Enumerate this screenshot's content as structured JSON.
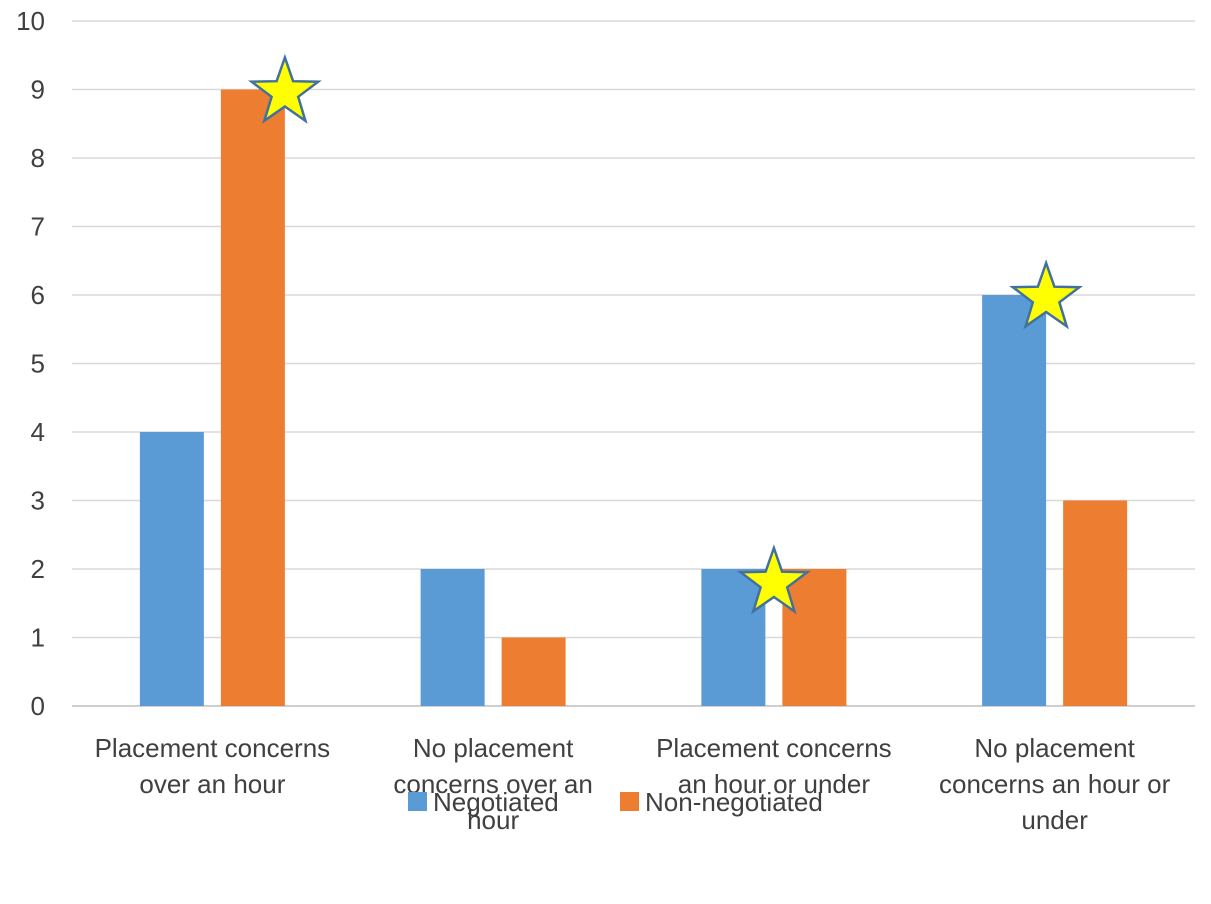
{
  "chart_data": {
    "type": "bar",
    "categories": [
      [
        "Placement concerns",
        "over an hour"
      ],
      [
        "No placement",
        "concerns over an",
        "hour"
      ],
      [
        "Placement concerns",
        "an hour or under"
      ],
      [
        "No placement",
        "concerns an hour or",
        "under"
      ]
    ],
    "series": [
      {
        "name": "Negotiated",
        "values": [
          4,
          2,
          2,
          6
        ],
        "color": "#5B9BD5"
      },
      {
        "name": "Non-negotiated",
        "values": [
          9,
          1,
          2,
          3
        ],
        "color": "#ED7D31"
      }
    ],
    "ylim": [
      0,
      10
    ],
    "yticks": [
      "0",
      "1",
      "2",
      "3",
      "4",
      "5",
      "6",
      "7",
      "8",
      "9",
      "10"
    ],
    "grid": true,
    "legend_position": "bottom",
    "annotations": [
      {
        "type": "star-marker",
        "category": 0,
        "series": 1,
        "color": "#FFFF00"
      },
      {
        "type": "star-marker",
        "category": 2,
        "series": "between",
        "color": "#FFFF00"
      },
      {
        "type": "star-marker",
        "category": 3,
        "series": 0,
        "color": "#FFFF00"
      }
    ]
  }
}
